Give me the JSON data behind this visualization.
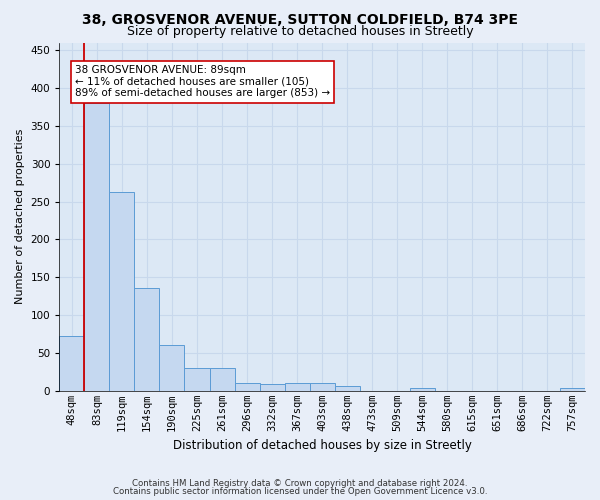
{
  "title1": "38, GROSVENOR AVENUE, SUTTON COLDFIELD, B74 3PE",
  "title2": "Size of property relative to detached houses in Streetly",
  "xlabel": "Distribution of detached houses by size in Streetly",
  "ylabel": "Number of detached properties",
  "categories": [
    "48sqm",
    "83sqm",
    "119sqm",
    "154sqm",
    "190sqm",
    "225sqm",
    "261sqm",
    "296sqm",
    "332sqm",
    "367sqm",
    "403sqm",
    "438sqm",
    "473sqm",
    "509sqm",
    "544sqm",
    "580sqm",
    "615sqm",
    "651sqm",
    "686sqm",
    "722sqm",
    "757sqm"
  ],
  "values": [
    72,
    380,
    262,
    136,
    60,
    30,
    30,
    10,
    9,
    10,
    10,
    6,
    0,
    0,
    4,
    0,
    0,
    0,
    0,
    0,
    4
  ],
  "bar_color": "#c5d8f0",
  "bar_edge_color": "#5b9bd5",
  "red_line_index": 1,
  "annotation_text_line1": "38 GROSVENOR AVENUE: 89sqm",
  "annotation_text_line2": "← 11% of detached houses are smaller (105)",
  "annotation_text_line3": "89% of semi-detached houses are larger (853) →",
  "ylim": [
    0,
    460
  ],
  "yticks": [
    0,
    50,
    100,
    150,
    200,
    250,
    300,
    350,
    400,
    450
  ],
  "footer1": "Contains HM Land Registry data © Crown copyright and database right 2024.",
  "footer2": "Contains public sector information licensed under the Open Government Licence v3.0.",
  "background_color": "#e8eef8",
  "plot_background_color": "#dce8f5",
  "grid_color": "#c8d8ec",
  "title_fontsize": 10,
  "subtitle_fontsize": 9,
  "ylabel_fontsize": 8,
  "xlabel_fontsize": 8.5,
  "tick_fontsize": 7.5,
  "annotation_fontsize": 7.5
}
